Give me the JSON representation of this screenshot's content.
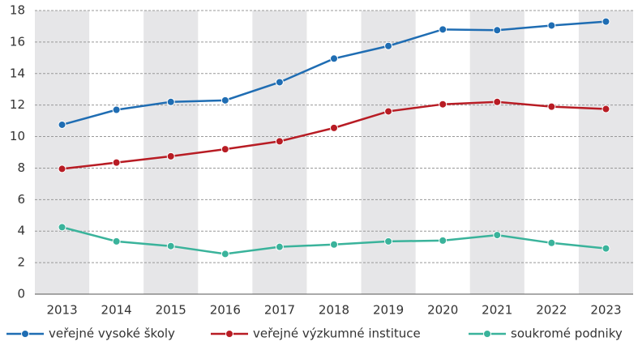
{
  "chart_data": {
    "type": "line",
    "categories": [
      "2013",
      "2014",
      "2015",
      "2016",
      "2017",
      "2018",
      "2019",
      "2020",
      "2021",
      "2022",
      "2023"
    ],
    "series": [
      {
        "name": "veřejné vysoké školy",
        "color": "#1f6db3",
        "values": [
          10.75,
          11.7,
          12.2,
          12.3,
          13.45,
          14.95,
          15.75,
          16.8,
          16.75,
          17.05,
          17.3
        ]
      },
      {
        "name": "veřejné výzkumné instituce",
        "color": "#b81c24",
        "values": [
          7.95,
          8.35,
          8.75,
          9.2,
          9.7,
          10.55,
          11.6,
          12.05,
          12.2,
          11.9,
          11.75
        ]
      },
      {
        "name": "soukromé podniky",
        "color": "#3ab39b",
        "values": [
          4.25,
          3.35,
          3.05,
          2.55,
          3.0,
          3.15,
          3.35,
          3.4,
          3.75,
          3.25,
          2.9
        ]
      }
    ],
    "ylim": [
      0,
      18
    ],
    "yticks": [
      0,
      2,
      4,
      6,
      8,
      10,
      12,
      14,
      16,
      18
    ],
    "grid": true,
    "band_shading": "#e6e6e8",
    "legend": "bottom"
  }
}
